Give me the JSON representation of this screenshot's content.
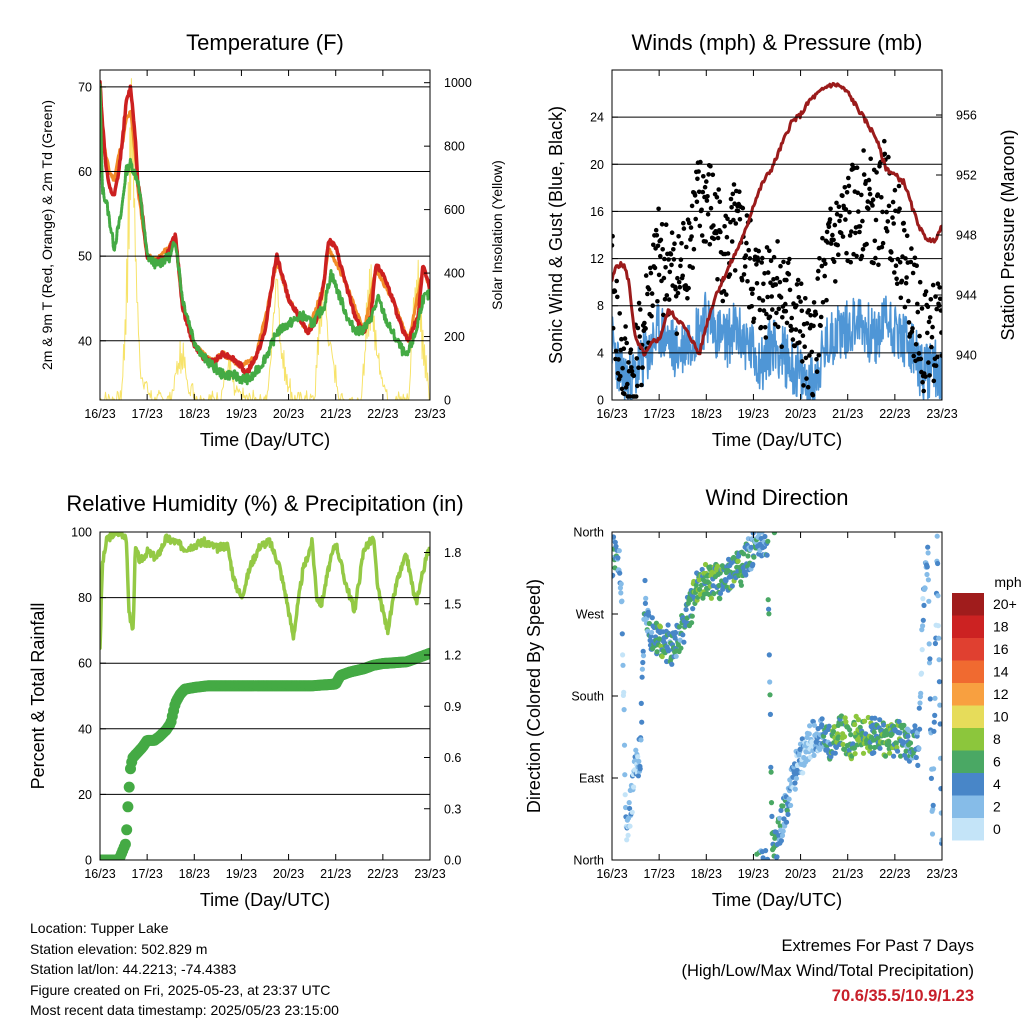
{
  "colors": {
    "temp_2m": "#cc2020",
    "temp_9m": "#f28c28",
    "dewpoint": "#44aa44",
    "solar": "#f7e36a",
    "wind": "#4f96d6",
    "gust": "#000000",
    "pressure": "#9b1b1b",
    "rh": "#94c945",
    "precip": "#44aa44",
    "grid": "#000000"
  },
  "chart_data": [
    {
      "id": "temperature",
      "type": "line",
      "title": "Temperature (F)",
      "xlabel": "Time (Day/UTC)",
      "ylabel": "2m & 9m T (Red, Orange) & 2m Td (Green)",
      "ylabel_right": "Solar Insolation (Yellow)",
      "x_ticks": [
        "16/23",
        "17/23",
        "18/23",
        "19/23",
        "20/23",
        "21/23",
        "22/23",
        "23/23"
      ],
      "xlim": [
        0,
        7
      ],
      "y_ticks": [
        40,
        50,
        60,
        70
      ],
      "ylim": [
        33,
        72
      ],
      "y2_ticks": [
        0,
        200,
        400,
        600,
        800,
        1000
      ],
      "y2lim": [
        0,
        1040
      ],
      "grid": true,
      "series": [
        {
          "name": "2m T",
          "axis": "left",
          "x": [
            0,
            0.05,
            0.12,
            0.2,
            0.3,
            0.4,
            0.5,
            0.55,
            0.65,
            0.75,
            0.8,
            0.9,
            1.0,
            1.1,
            1.2,
            1.4,
            1.6,
            1.75,
            1.85,
            1.9,
            2.0,
            2.2,
            2.4,
            2.6,
            2.8,
            3.0,
            3.1,
            3.3,
            3.5,
            3.6,
            3.7,
            3.75,
            3.85,
            4.0,
            4.2,
            4.4,
            4.6,
            4.75,
            4.85,
            5.0,
            5.2,
            5.4,
            5.6,
            5.75,
            5.85,
            6.0,
            6.2,
            6.4,
            6.55,
            6.75,
            6.85,
            7.0
          ],
          "values": [
            70.5,
            66,
            61,
            58,
            57,
            60,
            65,
            68,
            70,
            64,
            59,
            55,
            50,
            49.5,
            49.5,
            50,
            52.5,
            44,
            42,
            41,
            39.5,
            38,
            37.5,
            38.5,
            38,
            37,
            36,
            38,
            41,
            45,
            48.5,
            50,
            48,
            45,
            43,
            41,
            42.5,
            47,
            52,
            51,
            47,
            43,
            41,
            43,
            49,
            48,
            45,
            41.5,
            40,
            43,
            49,
            46
          ]
        },
        {
          "name": "9m T",
          "axis": "left",
          "x": [
            0,
            0.05,
            0.12,
            0.2,
            0.3,
            0.4,
            0.5,
            0.55,
            0.65,
            0.75,
            0.8,
            0.9,
            1.0,
            1.2,
            1.6,
            1.75,
            2.0,
            2.4,
            2.6,
            3.0,
            3.3,
            3.6,
            3.75,
            4.0,
            4.4,
            4.75,
            4.85,
            5.2,
            5.6,
            5.85,
            6.2,
            6.55,
            6.85,
            7.0
          ],
          "values": [
            70,
            65,
            62,
            60,
            59,
            62,
            64,
            66,
            67,
            62,
            58,
            54,
            50,
            49.5,
            52,
            44,
            39.5,
            37.5,
            38.5,
            37,
            38,
            45,
            49.5,
            45,
            41,
            46.5,
            51,
            47,
            41,
            48.5,
            45,
            40,
            48.5,
            46
          ]
        },
        {
          "name": "2m Td",
          "axis": "left",
          "x": [
            0,
            0.05,
            0.15,
            0.3,
            0.45,
            0.55,
            0.65,
            0.8,
            0.9,
            1.0,
            1.2,
            1.5,
            1.6,
            1.75,
            2.0,
            2.2,
            2.4,
            2.6,
            2.8,
            3.0,
            3.2,
            3.4,
            3.6,
            3.75,
            4.0,
            4.3,
            4.5,
            4.75,
            4.9,
            5.1,
            5.3,
            5.5,
            5.7,
            5.9,
            6.1,
            6.3,
            6.5,
            6.7,
            6.85,
            7.0
          ],
          "values": [
            70,
            58,
            56,
            51,
            55,
            60,
            61,
            59,
            55,
            50,
            49,
            50,
            52,
            45,
            40,
            38,
            37,
            36,
            36,
            35.5,
            35.5,
            37,
            39,
            41,
            42,
            43,
            42,
            44,
            48,
            45,
            42,
            41,
            42,
            45,
            42,
            40,
            38,
            41,
            45,
            45.5
          ]
        },
        {
          "name": "Solar Insolation",
          "axis": "right",
          "x": [
            0,
            0.45,
            0.55,
            0.62,
            0.68,
            0.75,
            0.85,
            1.1,
            1.5,
            1.65,
            1.75,
            1.85,
            2.1,
            2.55,
            2.65,
            2.75,
            2.85,
            3.1,
            3.55,
            3.65,
            3.75,
            3.85,
            4.1,
            4.55,
            4.65,
            4.75,
            4.85,
            5.1,
            5.55,
            5.65,
            5.75,
            5.85,
            6.1,
            6.55,
            6.65,
            6.75,
            6.85,
            7.0
          ],
          "values": [
            0,
            0,
            300,
            750,
            1000,
            500,
            100,
            0,
            0,
            120,
            170,
            60,
            0,
            0,
            80,
            120,
            30,
            0,
            0,
            200,
            430,
            150,
            0,
            0,
            260,
            380,
            200,
            0,
            0,
            250,
            400,
            180,
            0,
            0,
            300,
            420,
            200,
            0
          ]
        }
      ]
    },
    {
      "id": "winds",
      "type": "line",
      "title": "Winds (mph) & Pressure (mb)",
      "xlabel": "Time (Day/UTC)",
      "ylabel": "Sonic Wind & Gust (Blue, Black)",
      "ylabel_right": "Station Pressure (Maroon)",
      "x_ticks": [
        "16/23",
        "17/23",
        "18/23",
        "19/23",
        "20/23",
        "21/23",
        "22/23",
        "23/23"
      ],
      "xlim": [
        0,
        7
      ],
      "y_ticks": [
        0,
        4,
        8,
        12,
        16,
        20,
        24
      ],
      "ylim": [
        0,
        28
      ],
      "y2_ticks": [
        940,
        944,
        948,
        952,
        956
      ],
      "y2lim": [
        937,
        959
      ],
      "grid": true,
      "series": [
        {
          "name": "Sonic Wind",
          "axis": "left",
          "x": [
            0,
            0.2,
            0.4,
            0.6,
            0.8,
            1.0,
            1.2,
            1.4,
            1.6,
            1.8,
            2.0,
            2.2,
            2.4,
            2.6,
            2.8,
            3.0,
            3.2,
            3.4,
            3.6,
            3.8,
            4.0,
            4.2,
            4.4,
            4.6,
            4.8,
            5.0,
            5.2,
            5.4,
            5.6,
            5.8,
            6.0,
            6.2,
            6.4,
            6.6,
            6.8,
            7.0
          ],
          "values": [
            5,
            2,
            1.5,
            3,
            4,
            6,
            5,
            4,
            5,
            6,
            7,
            6,
            5,
            6,
            5,
            4,
            3,
            5,
            4,
            3,
            2,
            1,
            3,
            5,
            6,
            6,
            7,
            6,
            5,
            7,
            6,
            5,
            4,
            2,
            3,
            2
          ]
        },
        {
          "name": "Gust",
          "axis": "left",
          "x": [
            0,
            0.2,
            0.4,
            0.6,
            0.8,
            1.0,
            1.2,
            1.4,
            1.6,
            1.8,
            2.0,
            2.2,
            2.4,
            2.6,
            2.8,
            3.0,
            3.2,
            3.4,
            3.6,
            3.8,
            4.0,
            4.2,
            4.4,
            4.6,
            4.8,
            5.0,
            5.2,
            5.4,
            5.6,
            5.8,
            6.0,
            6.2,
            6.4,
            6.6,
            6.8,
            7.0
          ],
          "values": [
            10,
            3,
            2,
            4,
            9,
            12,
            11,
            10,
            13,
            16,
            17,
            15,
            12,
            14,
            13,
            10,
            9,
            11,
            9,
            8,
            6,
            3,
            8,
            12,
            14,
            15,
            16,
            17,
            15,
            18,
            15,
            12,
            8,
            5,
            6,
            5
          ]
        },
        {
          "name": "Station Pressure",
          "axis": "right",
          "x": [
            0,
            0.1,
            0.25,
            0.35,
            0.5,
            0.7,
            0.9,
            1.0,
            1.2,
            1.5,
            1.7,
            1.85,
            2.0,
            2.2,
            2.5,
            2.8,
            3.0,
            3.2,
            3.4,
            3.6,
            3.8,
            4.0,
            4.2,
            4.4,
            4.6,
            4.8,
            5.0,
            5.2,
            5.4,
            5.6,
            5.8,
            6.0,
            6.2,
            6.4,
            6.6,
            6.8,
            7.0
          ],
          "values": [
            945,
            946,
            946,
            945,
            941,
            940,
            941,
            941,
            943,
            942,
            941,
            940,
            942,
            944,
            946,
            948,
            950,
            951.5,
            952.5,
            954,
            955.5,
            956,
            957,
            957.5,
            958,
            958,
            957.5,
            956.5,
            955.5,
            954.5,
            952.5,
            952,
            951.5,
            949.5,
            948,
            947.5,
            948.5
          ]
        }
      ]
    },
    {
      "id": "humidity",
      "type": "line",
      "title": "Relative Humidity (%) & Precipitation (in)",
      "xlabel": "Time (Day/UTC)",
      "ylabel": "Percent & Total Rainfall",
      "x_ticks": [
        "16/23",
        "17/23",
        "18/23",
        "19/23",
        "20/23",
        "21/23",
        "22/23",
        "23/23"
      ],
      "xlim": [
        0,
        7
      ],
      "y_ticks": [
        0,
        20,
        40,
        60,
        80,
        100
      ],
      "ylim": [
        0,
        100
      ],
      "y2_ticks": [
        "0.0",
        "0.3",
        "0.6",
        "0.9",
        "1.2",
        "1.5",
        "1.8"
      ],
      "y2lim": [
        0,
        1.92
      ],
      "grid": true,
      "series": [
        {
          "name": "Relative Humidity",
          "axis": "left",
          "x": [
            0,
            0.05,
            0.15,
            0.25,
            0.4,
            0.55,
            0.62,
            0.7,
            0.75,
            0.85,
            1.0,
            1.2,
            1.4,
            1.6,
            1.8,
            2.0,
            2.2,
            2.5,
            2.7,
            2.85,
            3.0,
            3.2,
            3.4,
            3.6,
            3.8,
            3.95,
            4.1,
            4.3,
            4.5,
            4.6,
            4.7,
            4.85,
            5.0,
            5.2,
            5.4,
            5.6,
            5.8,
            5.9,
            6.1,
            6.3,
            6.5,
            6.7,
            6.85,
            7.0
          ],
          "values": [
            65,
            90,
            98,
            99,
            100,
            99,
            75,
            70,
            95,
            91,
            94,
            92,
            98,
            97,
            95,
            96,
            97,
            95,
            96,
            85,
            80,
            90,
            96,
            97,
            90,
            80,
            68,
            88,
            97,
            80,
            78,
            89,
            97,
            85,
            76,
            95,
            98,
            82,
            70,
            85,
            93,
            78,
            88,
            96
          ]
        },
        {
          "name": "Total Precipitation",
          "axis": "right",
          "x": [
            0,
            0.2,
            0.4,
            0.55,
            0.6,
            0.65,
            0.7,
            0.8,
            0.9,
            1.0,
            1.15,
            1.25,
            1.4,
            1.5,
            1.6,
            1.7,
            1.8,
            2.0,
            2.3,
            2.6,
            3.0,
            3.5,
            4.0,
            4.5,
            5.0,
            5.1,
            5.3,
            5.6,
            5.8,
            6.0,
            6.5,
            7.0
          ],
          "values": [
            0,
            0,
            0,
            0.1,
            0.35,
            0.55,
            0.6,
            0.63,
            0.66,
            0.7,
            0.7,
            0.72,
            0.76,
            0.8,
            0.92,
            0.97,
            1.0,
            1.01,
            1.02,
            1.02,
            1.02,
            1.02,
            1.02,
            1.02,
            1.03,
            1.08,
            1.1,
            1.12,
            1.14,
            1.15,
            1.16,
            1.21
          ]
        }
      ]
    },
    {
      "id": "wind-direction",
      "type": "scatter",
      "title": "Wind Direction",
      "xlabel": "Time (Day/UTC)",
      "ylabel": "Direction (Colored By Speed)",
      "x_ticks": [
        "16/23",
        "17/23",
        "18/23",
        "19/23",
        "20/23",
        "21/23",
        "22/23",
        "23/23"
      ],
      "xlim": [
        0,
        7
      ],
      "y_ticks": [
        "North",
        "East",
        "South",
        "West",
        "North"
      ],
      "y_tick_values": [
        0,
        90,
        180,
        270,
        360
      ],
      "ylim": [
        0,
        360
      ],
      "legend": {
        "title": "mph",
        "placement": "right",
        "labels": [
          "20+",
          "18",
          "16",
          "14",
          "12",
          "10",
          "8",
          "6",
          "4",
          "2",
          "0"
        ],
        "colors": [
          "#a01c1c",
          "#cc2222",
          "#e04030",
          "#f06a30",
          "#f8a040",
          "#e6dc5a",
          "#8cc63c",
          "#4aa864",
          "#4886c8",
          "#86bce8",
          "#c4e4f8"
        ]
      },
      "series": [
        {
          "name": "Direction",
          "x": [
            0.0,
            0.1,
            0.2,
            0.3,
            0.4,
            0.5,
            0.6,
            0.7,
            0.8,
            0.9,
            1.0,
            1.1,
            1.2,
            1.3,
            1.4,
            1.5,
            1.6,
            1.7,
            1.8,
            1.9,
            2.0,
            2.1,
            2.2,
            2.3,
            2.4,
            2.5,
            2.6,
            2.7,
            2.8,
            2.9,
            3.0,
            3.1,
            3.2,
            3.3,
            3.4,
            3.5,
            3.6,
            3.7,
            3.8,
            3.9,
            4.0,
            4.1,
            4.2,
            4.3,
            4.4,
            4.5,
            4.6,
            4.7,
            4.8,
            4.9,
            5.0,
            5.1,
            5.2,
            5.3,
            5.4,
            5.5,
            5.6,
            5.7,
            5.8,
            5.9,
            6.0,
            6.1,
            6.2,
            6.3,
            6.4,
            6.5,
            6.6,
            6.7,
            6.8,
            6.9,
            7.0
          ],
          "values": [
            330,
            345,
            300,
            30,
            60,
            100,
            120,
            290,
            250,
            250,
            240,
            230,
            240,
            230,
            240,
            255,
            270,
            280,
            300,
            305,
            310,
            305,
            310,
            300,
            310,
            315,
            325,
            320,
            320,
            335,
            340,
            350,
            355,
            350,
            10,
            20,
            40,
            60,
            80,
            100,
            110,
            120,
            130,
            135,
            140,
            140,
            130,
            130,
            135,
            140,
            135,
            130,
            140,
            135,
            140,
            135,
            140,
            135,
            130,
            135,
            130,
            135,
            130,
            125,
            130,
            120,
            280,
            340,
            30,
            350,
            10
          ]
        }
      ]
    }
  ],
  "info": {
    "location": "Location: Tupper Lake",
    "elevation": "Station elevation: 502.829 m",
    "latlon": "Station lat/lon: 44.2213; -74.4383",
    "created": "Figure created on Fri, 2025-05-23, at 23:37 UTC",
    "recent": "Most recent data timestamp: 2025/05/23 23:15:00"
  },
  "extremes": {
    "title": "Extremes For Past 7 Days",
    "subtitle": "(High/Low/Max Wind/Total Precipitation)",
    "values": "70.6/35.5/10.9/1.23"
  }
}
